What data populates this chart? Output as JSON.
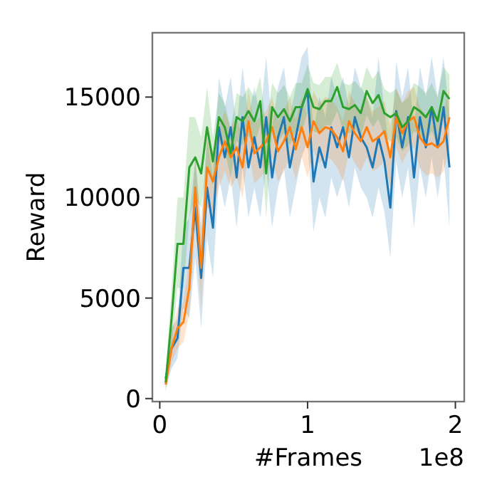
{
  "chart_data": {
    "type": "line",
    "xlabel": "#Frames",
    "ylabel": "Reward",
    "annotations": [
      "1e8"
    ],
    "x": [
      0.04,
      0.08,
      0.12,
      0.16,
      0.2,
      0.24,
      0.28,
      0.32,
      0.36,
      0.4,
      0.44,
      0.48,
      0.52,
      0.56,
      0.6,
      0.64,
      0.68,
      0.72,
      0.76,
      0.8,
      0.84,
      0.88,
      0.92,
      0.96,
      1.0,
      1.04,
      1.08,
      1.12,
      1.16,
      1.2,
      1.24,
      1.28,
      1.32,
      1.36,
      1.4,
      1.44,
      1.48,
      1.52,
      1.56,
      1.6,
      1.64,
      1.68,
      1.72,
      1.76,
      1.8,
      1.84,
      1.88,
      1.92,
      1.96
    ],
    "xlim": [
      -0.05,
      2.06
    ],
    "xticks": [
      0,
      1,
      2
    ],
    "ylim": [
      -150,
      18200
    ],
    "yticks": [
      0,
      5000,
      10000,
      15000
    ],
    "grid": false,
    "marker": "none",
    "line_style": "solid",
    "series": [
      {
        "color": "#1f77b4",
        "values": [
          1000,
          2500,
          3000,
          6500,
          6500,
          9500,
          6000,
          10500,
          8500,
          13500,
          12000,
          13500,
          11000,
          14000,
          11500,
          13000,
          11500,
          14000,
          11000,
          13000,
          14000,
          11500,
          13000,
          14500,
          15300,
          10800,
          12500,
          11500,
          13500,
          12500,
          13500,
          12000,
          14000,
          13000,
          12500,
          11500,
          13000,
          11800,
          9500,
          14300,
          12500,
          14000,
          11000,
          14000,
          12500,
          14500,
          12500,
          14500,
          11500
        ],
        "lower": [
          500,
          1500,
          2000,
          4500,
          4000,
          7000,
          3500,
          8000,
          6000,
          11000,
          9500,
          11000,
          8500,
          11500,
          9000,
          10500,
          9000,
          11500,
          8500,
          10500,
          11500,
          9000,
          10500,
          12000,
          12800,
          8300,
          10000,
          9000,
          11000,
          10000,
          11000,
          9500,
          11500,
          10500,
          10000,
          9000,
          10500,
          9300,
          7000,
          11800,
          10000,
          11500,
          8500,
          11500,
          10000,
          12000,
          10000,
          12000,
          8500
        ],
        "upper": [
          1500,
          3500,
          4000,
          8500,
          9000,
          12000,
          8500,
          13000,
          11000,
          16000,
          14500,
          16000,
          13500,
          16500,
          14000,
          15500,
          14000,
          17000,
          13500,
          15500,
          16500,
          14000,
          15500,
          17000,
          17500,
          13300,
          15000,
          14000,
          16000,
          15000,
          16000,
          14500,
          16500,
          15500,
          15000,
          14000,
          17000,
          14300,
          12000,
          16800,
          15000,
          16500,
          13500,
          16500,
          15000,
          17000,
          15000,
          17000,
          14000
        ]
      },
      {
        "color": "#ff7f0e",
        "values": [
          700,
          2500,
          3500,
          3800,
          5500,
          10500,
          6500,
          11500,
          10800,
          12000,
          12800,
          12000,
          12500,
          11500,
          13800,
          12200,
          12500,
          12800,
          13500,
          12300,
          12800,
          13500,
          12400,
          13500,
          12500,
          13800,
          13200,
          13500,
          13400,
          13000,
          12300,
          13800,
          13200,
          12800,
          13500,
          12800,
          13000,
          13300,
          12000,
          14000,
          13200,
          13800,
          14000,
          13000,
          12600,
          12700,
          12500,
          12800,
          14000
        ],
        "lower": [
          300,
          1800,
          2500,
          2800,
          4200,
          8500,
          4500,
          9500,
          9300,
          10500,
          11300,
          10500,
          11000,
          10000,
          12300,
          10700,
          11000,
          11300,
          12000,
          10800,
          11300,
          12000,
          10900,
          12000,
          11000,
          12300,
          11700,
          12000,
          11900,
          11500,
          10800,
          12300,
          11700,
          11300,
          12000,
          11300,
          11500,
          11800,
          10500,
          12500,
          11700,
          12300,
          12500,
          11500,
          11100,
          11200,
          11000,
          11300,
          12500
        ],
        "upper": [
          1100,
          3300,
          4500,
          4800,
          7000,
          12000,
          8500,
          13000,
          12300,
          13500,
          14300,
          13500,
          14000,
          13000,
          15300,
          13700,
          14000,
          14300,
          15000,
          13800,
          14300,
          15000,
          13900,
          15000,
          14000,
          15300,
          14700,
          15000,
          14900,
          14500,
          13800,
          15300,
          14700,
          14300,
          15000,
          14300,
          14500,
          14800,
          13500,
          15500,
          14700,
          15300,
          15500,
          14500,
          14100,
          14200,
          14000,
          14300,
          15500
        ]
      },
      {
        "color": "#2ca02c",
        "values": [
          800,
          4000,
          7700,
          7700,
          11500,
          12000,
          11200,
          13500,
          11800,
          14000,
          13500,
          12200,
          14000,
          13800,
          14300,
          13800,
          14800,
          11200,
          14500,
          14000,
          14400,
          13800,
          14500,
          14500,
          15400,
          14500,
          14400,
          14800,
          14800,
          15500,
          14500,
          14400,
          14600,
          14200,
          15300,
          14700,
          15100,
          14200,
          14000,
          14200,
          13500,
          13800,
          14500,
          14300,
          14000,
          14500,
          13800,
          15300,
          14900
        ],
        "lower": [
          500,
          2500,
          5500,
          5500,
          9000,
          10000,
          9500,
          11500,
          10600,
          12800,
          12300,
          11000,
          12800,
          12600,
          13100,
          12600,
          13600,
          9000,
          13300,
          12800,
          13200,
          12600,
          13300,
          13300,
          14200,
          13300,
          13200,
          13600,
          13600,
          14300,
          13300,
          13200,
          13400,
          13000,
          14100,
          13500,
          13900,
          13000,
          12800,
          13000,
          12300,
          12600,
          13300,
          13100,
          12800,
          13300,
          12600,
          14100,
          13700
        ],
        "upper": [
          1100,
          5500,
          10000,
          10000,
          14000,
          14000,
          13000,
          15500,
          13000,
          15200,
          14700,
          13400,
          15200,
          15000,
          15500,
          15000,
          16000,
          13400,
          15700,
          15200,
          15600,
          15000,
          15700,
          15700,
          16600,
          15700,
          15600,
          16000,
          16000,
          16700,
          15700,
          15600,
          15800,
          15400,
          16500,
          15900,
          16300,
          15400,
          15200,
          15400,
          14700,
          15000,
          15700,
          15500,
          15200,
          15700,
          15000,
          16500,
          16100
        ]
      }
    ]
  }
}
